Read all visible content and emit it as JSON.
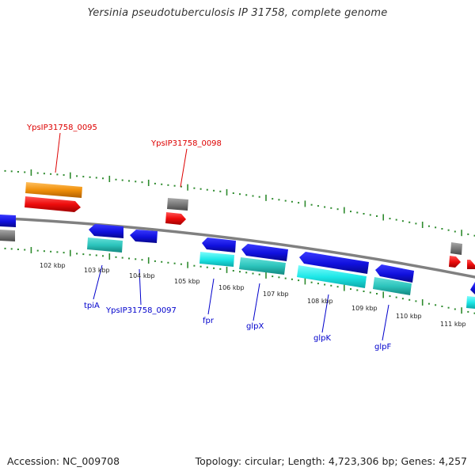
{
  "title": "Yersinia pseudotuberculosis IP 31758, complete genome",
  "footer": {
    "accession": "Accession: NC_009708",
    "stats": "Topology: circular; Length: 4,723,306 bp; Genes: 4,257"
  },
  "colors": {
    "backbone": "#808080",
    "dots": "#2e8b2e",
    "red_label": "#dd0000",
    "blue_label": "#0000cc",
    "blue_gene": "#1a1ae6",
    "cyan_gene": "#22e8e8",
    "teal_gene": "#30c8c0",
    "red_gene": "#f01010",
    "orange_gene": "#f0900a",
    "gray_gene": "#7a7a7a"
  },
  "kbp_ticks": [
    "102 kbp",
    "103 kbp",
    "104 kbp",
    "105 kbp",
    "106 kbp",
    "107 kbp",
    "108 kbp",
    "109 kbp",
    "110 kbp",
    "111 kbp"
  ],
  "upper_labels": [
    "YpsIP31758_0095",
    "YpsIP31758_0098"
  ],
  "lower_labels": [
    "tpiA",
    "YpsIP31758_0097",
    "fpr",
    "glpX",
    "glpK",
    "glpF"
  ]
}
